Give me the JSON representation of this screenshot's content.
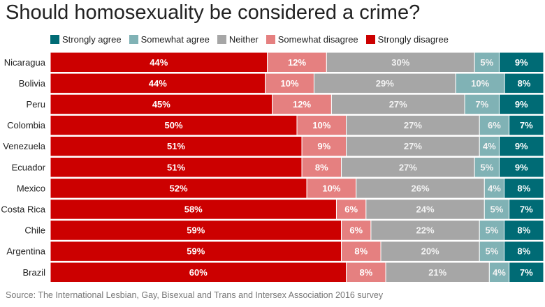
{
  "chart_data": {
    "type": "bar",
    "orientation": "horizontal",
    "stacked": true,
    "title": "Should homosexuality be considered a crime?",
    "source": "Source: The International Lesbian, Gay, Bisexual and Trans and Intersex Association 2016 survey",
    "categories": [
      "Nicaragua",
      "Bolivia",
      "Peru",
      "Colombia",
      "Venezuela",
      "Ecuador",
      "Mexico",
      "Costa Rica",
      "Chile",
      "Argentina",
      "Brazil"
    ],
    "legend_order": [
      "Strongly agree",
      "Somewhat agree",
      "Neither",
      "Somewhat disagree",
      "Strongly disagree"
    ],
    "legend_position": "top",
    "series": [
      {
        "name": "Strongly disagree",
        "color": "#cc0000",
        "values": [
          44,
          44,
          45,
          50,
          51,
          51,
          52,
          58,
          59,
          59,
          60
        ],
        "labels": [
          "44%",
          "44%",
          "45%",
          "50%",
          "51%",
          "51%",
          "52%",
          "58%",
          "59%",
          "59%",
          "60%"
        ]
      },
      {
        "name": "Somewhat disagree",
        "color": "#e58080",
        "values": [
          12,
          10,
          12,
          10,
          9,
          8,
          10,
          6,
          6,
          8,
          8
        ],
        "labels": [
          "12%",
          "10%",
          "12%",
          "10%",
          "9%",
          "8%",
          "10%",
          "6%",
          "6%",
          "8%",
          "8%"
        ]
      },
      {
        "name": "Neither",
        "color": "#a6a6a6",
        "values": [
          30,
          29,
          27,
          27,
          27,
          27,
          26,
          24,
          22,
          20,
          21
        ],
        "labels": [
          "30%",
          "29%",
          "27%",
          "27%",
          "27%",
          "27%",
          "26%",
          "24%",
          "22%",
          "20%",
          "21%"
        ]
      },
      {
        "name": "Somewhat agree",
        "color": "#80b2b5",
        "values": [
          5,
          10,
          7,
          6,
          4,
          5,
          4,
          5,
          5,
          5,
          4
        ],
        "labels": [
          "5%",
          "10%",
          "7%",
          "6%",
          "4%",
          "5%",
          "4%",
          "5%",
          "5%",
          "5%",
          "4%"
        ]
      },
      {
        "name": "Strongly agree",
        "color": "#006b75",
        "values": [
          9,
          8,
          9,
          7,
          9,
          9,
          8,
          7,
          8,
          8,
          7
        ],
        "labels": [
          "9%",
          "8%",
          "9%",
          "7%",
          "9%",
          "9%",
          "8%",
          "7%",
          "8%",
          "8%",
          "7%"
        ]
      }
    ]
  }
}
